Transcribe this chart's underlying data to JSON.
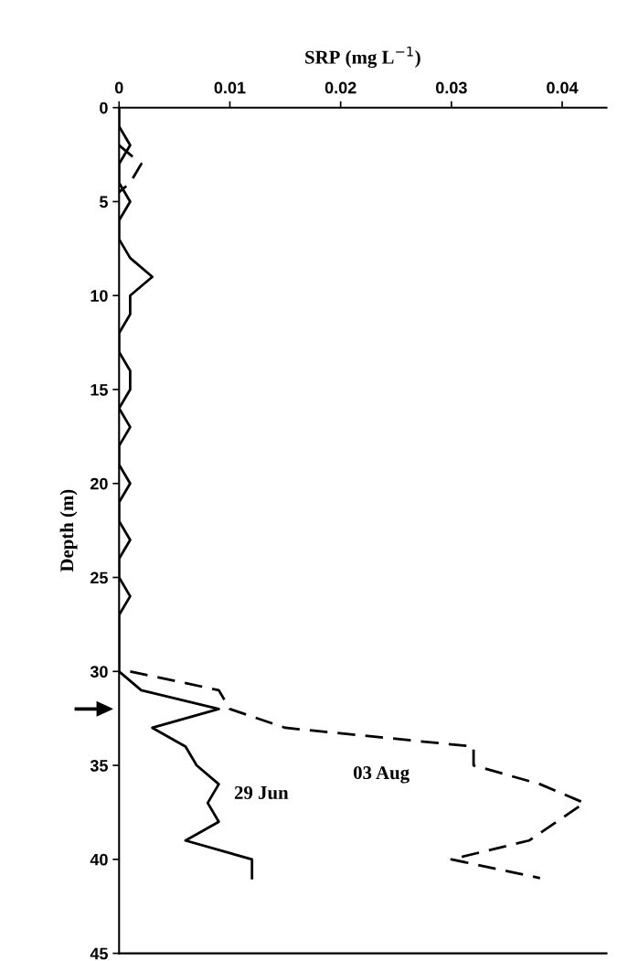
{
  "chart_data": {
    "type": "line",
    "xlabel": "SRP (mg L$^{−1}$)",
    "ylabel": "Depth (m)",
    "series": [
      {
        "name": "29 Jun",
        "color": "#000000",
        "line_style": "solid",
        "x": [
          0,
          0,
          0.001,
          0,
          0,
          0.001,
          0,
          0,
          0.001,
          0.003,
          0.001,
          0.001,
          0,
          0,
          0.001,
          0.001,
          0,
          0.001,
          0,
          0,
          0.001,
          0,
          0,
          0.001,
          0,
          0,
          0.001,
          0,
          0,
          0,
          0,
          0.002,
          0.009,
          0.003,
          0.006,
          0.007,
          0.009,
          0.008,
          0.009,
          0.006,
          0.012,
          0.012
        ],
        "values": [
          0,
          1,
          2,
          3,
          4,
          5,
          6,
          7,
          8,
          9,
          10,
          11,
          12,
          13,
          14,
          15,
          16,
          17,
          18,
          19,
          20,
          21,
          22,
          23,
          24,
          25,
          26,
          27,
          28,
          29,
          30,
          31,
          32,
          33,
          34,
          35,
          36,
          37,
          38,
          39,
          40,
          41
        ]
      },
      {
        "name": "03 Aug",
        "color": "#000000",
        "line_style": "dashed",
        "x": [
          0,
          0.002,
          0.001,
          0,
          null,
          0.001,
          0.009,
          0.01,
          0.015,
          0.032,
          0.032,
          0.038,
          0.042,
          0.037,
          0.03,
          0.038
        ],
        "values": [
          2,
          3,
          4,
          4.5,
          null,
          30,
          31,
          32,
          33,
          34,
          35,
          36,
          37,
          39,
          40,
          41
        ]
      }
    ],
    "xlim": [
      0,
      0.044
    ],
    "xticks": [
      0,
      0.01,
      0.02,
      0.03,
      0.04
    ],
    "ylim": [
      45,
      0
    ],
    "yticks": [
      0,
      5,
      10,
      15,
      20,
      25,
      30,
      35,
      40,
      45
    ],
    "grid": false,
    "legend": false,
    "marker": "none"
  }
}
